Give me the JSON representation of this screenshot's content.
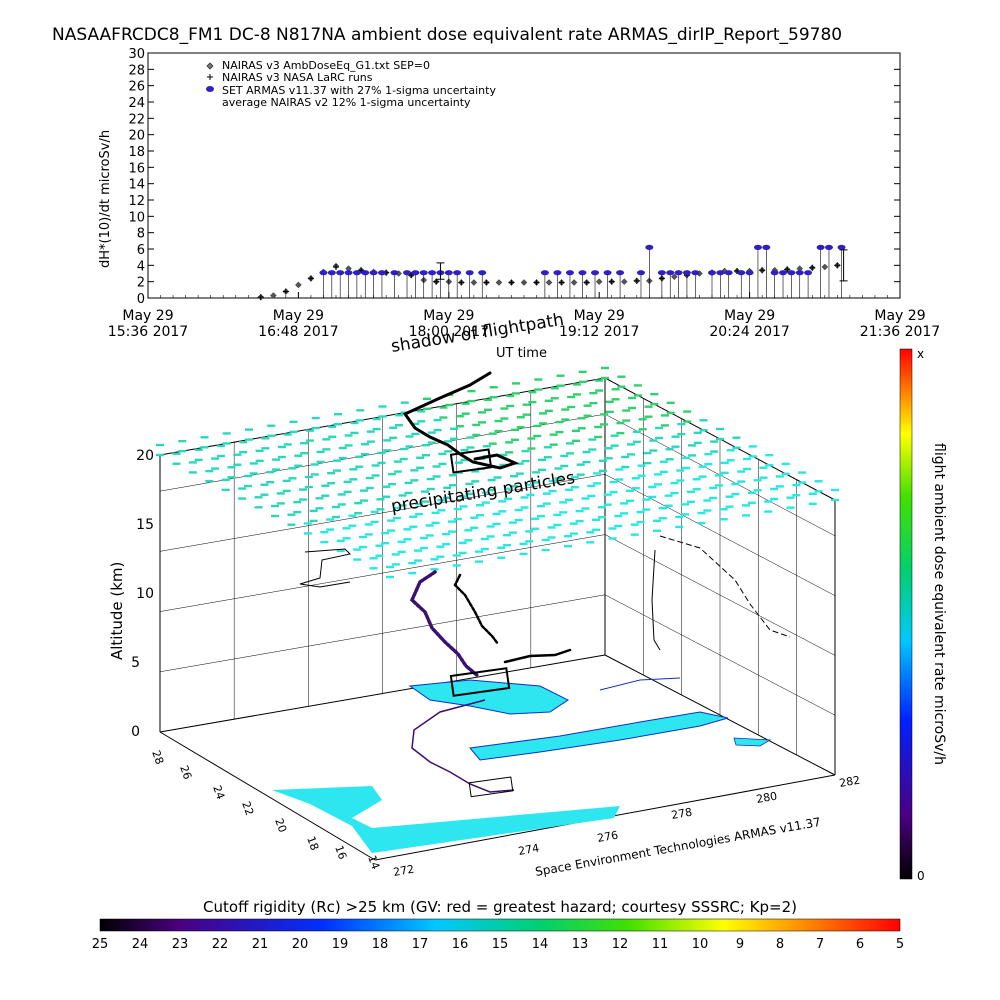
{
  "header": {
    "title": "NASAAFRCDC8_FM1 DC-8    N817NA ambient dose equivalent rate ARMAS_dirIP_Report_59780"
  },
  "colors": {
    "nairas_v3": "#555555",
    "larc": "#000000",
    "armas": "#3b1e9e",
    "armas_dot": "#3020c0",
    "shadow": "#000000",
    "grid_arrows": "#22d6b0",
    "cutoff_fill": "#2ee6f0"
  },
  "chart_data": [
    {
      "type": "scatter",
      "title": "",
      "ylabel": "dH*(10)/dt microSv/h",
      "xlabel": "UT time",
      "ylim": [
        0,
        30
      ],
      "y_ticks": [
        "0",
        "2",
        "4",
        "6",
        "8",
        "10",
        "12",
        "14",
        "16",
        "18",
        "20",
        "22",
        "24",
        "26",
        "28",
        "30"
      ],
      "x_ticks": [
        {
          "date": "May 29",
          "time": "15:36 2017"
        },
        {
          "date": "May 29",
          "time": "16:48 2017"
        },
        {
          "date": "May 29",
          "time": "18:00 2017"
        },
        {
          "date": "May 29",
          "time": "19:12 2017"
        },
        {
          "date": "May 29",
          "time": "20:24 2017"
        },
        {
          "date": "May 29",
          "time": "21:36 2017"
        }
      ],
      "x_range_min": [
        0,
        360
      ],
      "legend": [
        "NAIRAS v3 AmbDoseEq_G1.txt SEP=0",
        "NAIRAS v3 NASA LaRC runs",
        "SET ARMAS v11.37 with 27% 1-sigma uncertainty",
        "average NAIRAS v2 12% 1-sigma uncertainty"
      ],
      "legend_position": "top-left",
      "series": [
        {
          "name": "NAIRAS v3 AmbDoseEq_G1.txt SEP=0",
          "x": [
            54,
            60,
            66,
            72,
            78,
            84,
            90,
            96,
            102,
            108,
            114,
            120,
            126,
            132,
            138,
            144,
            150,
            156,
            162,
            168,
            174,
            180,
            186,
            192,
            198,
            204,
            210,
            216,
            222,
            228,
            234,
            240,
            246,
            252,
            258,
            264,
            270,
            276,
            282,
            288,
            294,
            300,
            306,
            312,
            318,
            324,
            330
          ],
          "y": [
            0.1,
            0.3,
            0.8,
            1.6,
            2.4,
            3.2,
            3.9,
            3.6,
            3.4,
            3.2,
            3.1,
            3.0,
            2.8,
            2.2,
            2.0,
            2.0,
            1.9,
            1.9,
            1.9,
            1.9,
            1.9,
            1.9,
            1.9,
            1.9,
            1.9,
            1.9,
            1.9,
            2.0,
            2.0,
            2.0,
            2.1,
            2.1,
            2.4,
            2.6,
            2.8,
            3.0,
            3.1,
            3.3,
            3.3,
            3.3,
            3.4,
            3.4,
            3.5,
            3.6,
            3.7,
            3.8,
            4.0
          ]
        },
        {
          "name": "NAIRAS v3 NASA LaRC runs",
          "x": [
            54,
            66,
            78,
            90,
            102,
            114,
            126,
            138,
            150,
            162,
            174,
            186,
            198,
            210,
            222,
            234,
            246,
            258,
            270,
            282,
            294,
            306,
            318,
            330
          ],
          "y": [
            0.1,
            0.8,
            2.4,
            3.8,
            3.4,
            3.1,
            2.8,
            2.0,
            1.9,
            1.9,
            1.9,
            1.9,
            1.9,
            1.9,
            2.0,
            2.1,
            2.4,
            2.8,
            3.1,
            3.3,
            3.4,
            3.5,
            3.7,
            4.0
          ]
        },
        {
          "name": "SET ARMAS v11.37 with 27% 1-sigma uncertainty",
          "x": [
            84,
            88,
            92,
            96,
            100,
            104,
            108,
            112,
            118,
            124,
            128,
            132,
            136,
            140,
            144,
            148,
            154,
            160,
            190,
            196,
            202,
            208,
            214,
            220,
            226,
            236,
            240,
            246,
            250,
            254,
            258,
            262,
            270,
            274,
            278,
            284,
            288,
            292,
            296,
            300,
            304,
            308,
            312,
            316,
            322,
            326,
            332
          ],
          "y": [
            3.1,
            3.1,
            3.1,
            3.1,
            3.1,
            3.1,
            3.1,
            3.1,
            3.1,
            3.1,
            3.1,
            3.1,
            3.1,
            3.1,
            3.1,
            3.1,
            3.1,
            3.1,
            3.1,
            3.1,
            3.1,
            3.1,
            3.1,
            3.1,
            3.1,
            3.1,
            6.2,
            3.1,
            3.1,
            3.1,
            3.1,
            3.1,
            3.1,
            3.1,
            3.1,
            3.1,
            3.1,
            6.2,
            6.2,
            3.1,
            3.1,
            3.1,
            3.1,
            3.1,
            6.2,
            6.2,
            6.2
          ]
        },
        {
          "name": "average NAIRAS v2 12% 1-sigma uncertainty",
          "x": [
            140,
            333
          ],
          "y": [
            3.3,
            4.0
          ],
          "err": [
            1.0,
            1.9
          ]
        }
      ]
    },
    {
      "type": "scatter",
      "title": "",
      "zlabel": "Altitude (km)",
      "zlim": [
        0,
        20
      ],
      "z_ticks": [
        "0",
        "5",
        "10",
        "15",
        "20"
      ],
      "lat_ticks": [
        "14",
        "16",
        "18",
        "20",
        "22",
        "24",
        "26",
        "28"
      ],
      "lon_ticks": [
        "272",
        "274",
        "276",
        "278",
        "280",
        "282"
      ],
      "annotations": [
        "shadow of flightpath",
        "precipitating particles",
        "Space Environment Technologies ARMAS v11.37"
      ],
      "credit": "Space Environment Technologies ARMAS v11.37"
    }
  ],
  "colorbar_right": {
    "label": "flight ambient dose equivalent rate microSv/h",
    "max_label": "x",
    "min_label": "0"
  },
  "colorbar_bottom": {
    "title": "Cutoff rigidity (Rc) >25 km (GV: red = greatest hazard; courtesy SSSRC; Kp=2)",
    "ticks": [
      "25",
      "24",
      "23",
      "22",
      "21",
      "20",
      "19",
      "18",
      "17",
      "16",
      "15",
      "14",
      "13",
      "12",
      "11",
      "10",
      "9",
      "8",
      "7",
      "6",
      "5"
    ]
  }
}
